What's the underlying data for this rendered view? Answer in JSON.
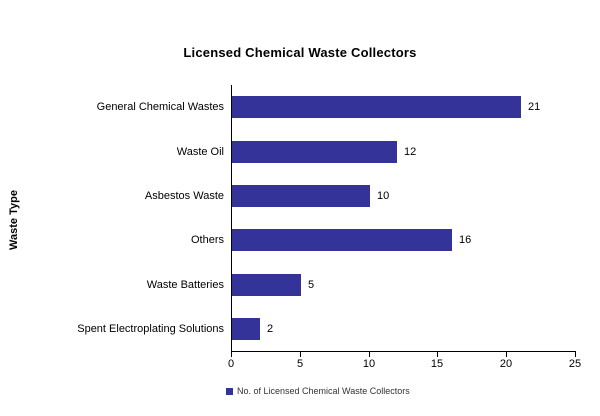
{
  "title": "Licensed Chemical Waste Collectors",
  "colors": {
    "bar": "#333399",
    "axis": "#000000",
    "background": "#ffffff",
    "text": "#000000"
  },
  "legend": {
    "swatch_icon": "legend-square-swatch",
    "label": "No. of Licensed Chemical Waste Collectors"
  },
  "chart_data": {
    "type": "bar",
    "orientation": "horizontal",
    "title": "Licensed Chemical Waste Collectors",
    "categories": [
      "General Chemical Wastes",
      "Waste Oil",
      "Asbestos Waste",
      "Others",
      "Waste Batteries",
      "Spent Electroplating Solutions"
    ],
    "values": [
      21,
      12,
      10,
      16,
      5,
      2
    ],
    "data_labels": [
      "21",
      "12",
      "10",
      "16",
      "5",
      "2"
    ],
    "xlabel": "",
    "ylabel": "Waste Type",
    "xlim": [
      0,
      25
    ],
    "x_ticks": [
      0,
      5,
      10,
      15,
      20,
      25
    ],
    "grid": false,
    "bar_color": "#333399",
    "legend_position": "bottom",
    "legend_entries": [
      {
        "label": "No. of Licensed Chemical Waste Collectors",
        "color": "#333399"
      }
    ]
  }
}
